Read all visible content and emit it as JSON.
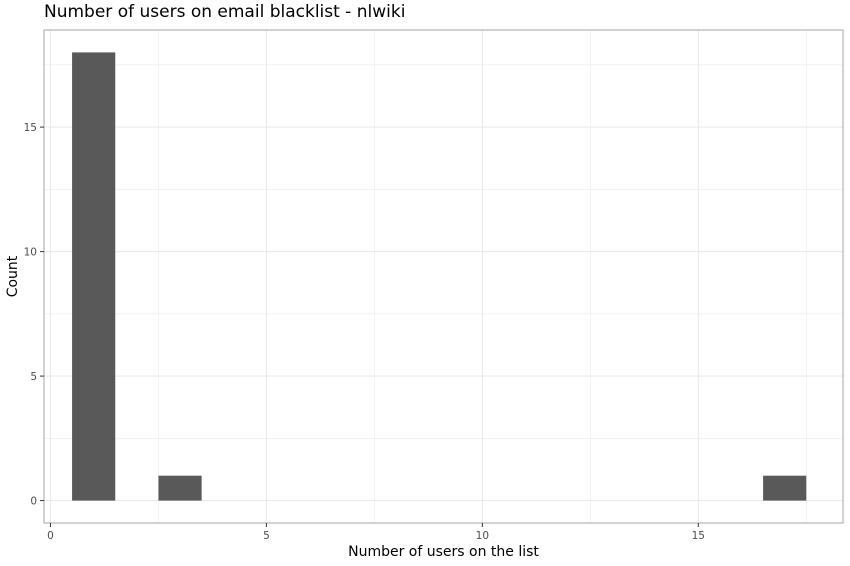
{
  "chart_data": {
    "type": "bar",
    "title": "Number of users on email blacklist - nlwiki",
    "xlabel": "Number of users on the list",
    "ylabel": "Count",
    "xlim": [
      -0.15,
      18.35
    ],
    "ylim": [
      -0.9,
      18.9
    ],
    "x_ticks": [
      0,
      5,
      10,
      15
    ],
    "y_ticks": [
      0,
      5,
      10,
      15
    ],
    "bin_width": 1,
    "bins": [
      {
        "x": 1,
        "count": 18
      },
      {
        "x": 2,
        "count": 0
      },
      {
        "x": 3,
        "count": 1
      },
      {
        "x": 4,
        "count": 0
      },
      {
        "x": 5,
        "count": 0
      },
      {
        "x": 6,
        "count": 0
      },
      {
        "x": 7,
        "count": 0
      },
      {
        "x": 8,
        "count": 0
      },
      {
        "x": 9,
        "count": 0
      },
      {
        "x": 10,
        "count": 0
      },
      {
        "x": 11,
        "count": 0
      },
      {
        "x": 12,
        "count": 0
      },
      {
        "x": 13,
        "count": 0
      },
      {
        "x": 14,
        "count": 0
      },
      {
        "x": 15,
        "count": 0
      },
      {
        "x": 16,
        "count": 0
      },
      {
        "x": 17,
        "count": 1
      }
    ],
    "grid": true,
    "bar_color": "#595959",
    "grid_color": "#ebebeb",
    "panel_border_color": "#b3b3b3"
  }
}
